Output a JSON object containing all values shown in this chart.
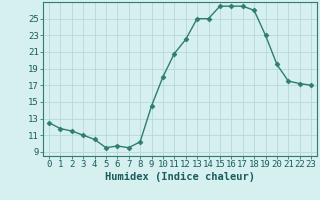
{
  "x": [
    0,
    1,
    2,
    3,
    4,
    5,
    6,
    7,
    8,
    9,
    10,
    11,
    12,
    13,
    14,
    15,
    16,
    17,
    18,
    19,
    20,
    21,
    22,
    23
  ],
  "y": [
    12.5,
    11.8,
    11.5,
    11.0,
    10.5,
    9.5,
    9.7,
    9.5,
    10.2,
    14.5,
    18.0,
    20.8,
    22.5,
    25.0,
    25.0,
    26.5,
    26.5,
    26.5,
    26.0,
    23.0,
    19.5,
    17.5,
    17.2,
    17.0
  ],
  "line_color": "#2e7d6e",
  "marker": "D",
  "marker_size": 2.5,
  "bg_color": "#d6f0f0",
  "grid_color": "#b8d8d8",
  "xlabel": "Humidex (Indice chaleur)",
  "xlim": [
    -0.5,
    23.5
  ],
  "ylim": [
    8.5,
    27.0
  ],
  "yticks": [
    9,
    11,
    13,
    15,
    17,
    19,
    21,
    23,
    25
  ],
  "xticks": [
    0,
    1,
    2,
    3,
    4,
    5,
    6,
    7,
    8,
    9,
    10,
    11,
    12,
    13,
    14,
    15,
    16,
    17,
    18,
    19,
    20,
    21,
    22,
    23
  ],
  "tick_label_color": "#1a5c5c",
  "axis_color": "#2e7d6e",
  "font_size": 6.5,
  "xlabel_font_size": 7.5
}
